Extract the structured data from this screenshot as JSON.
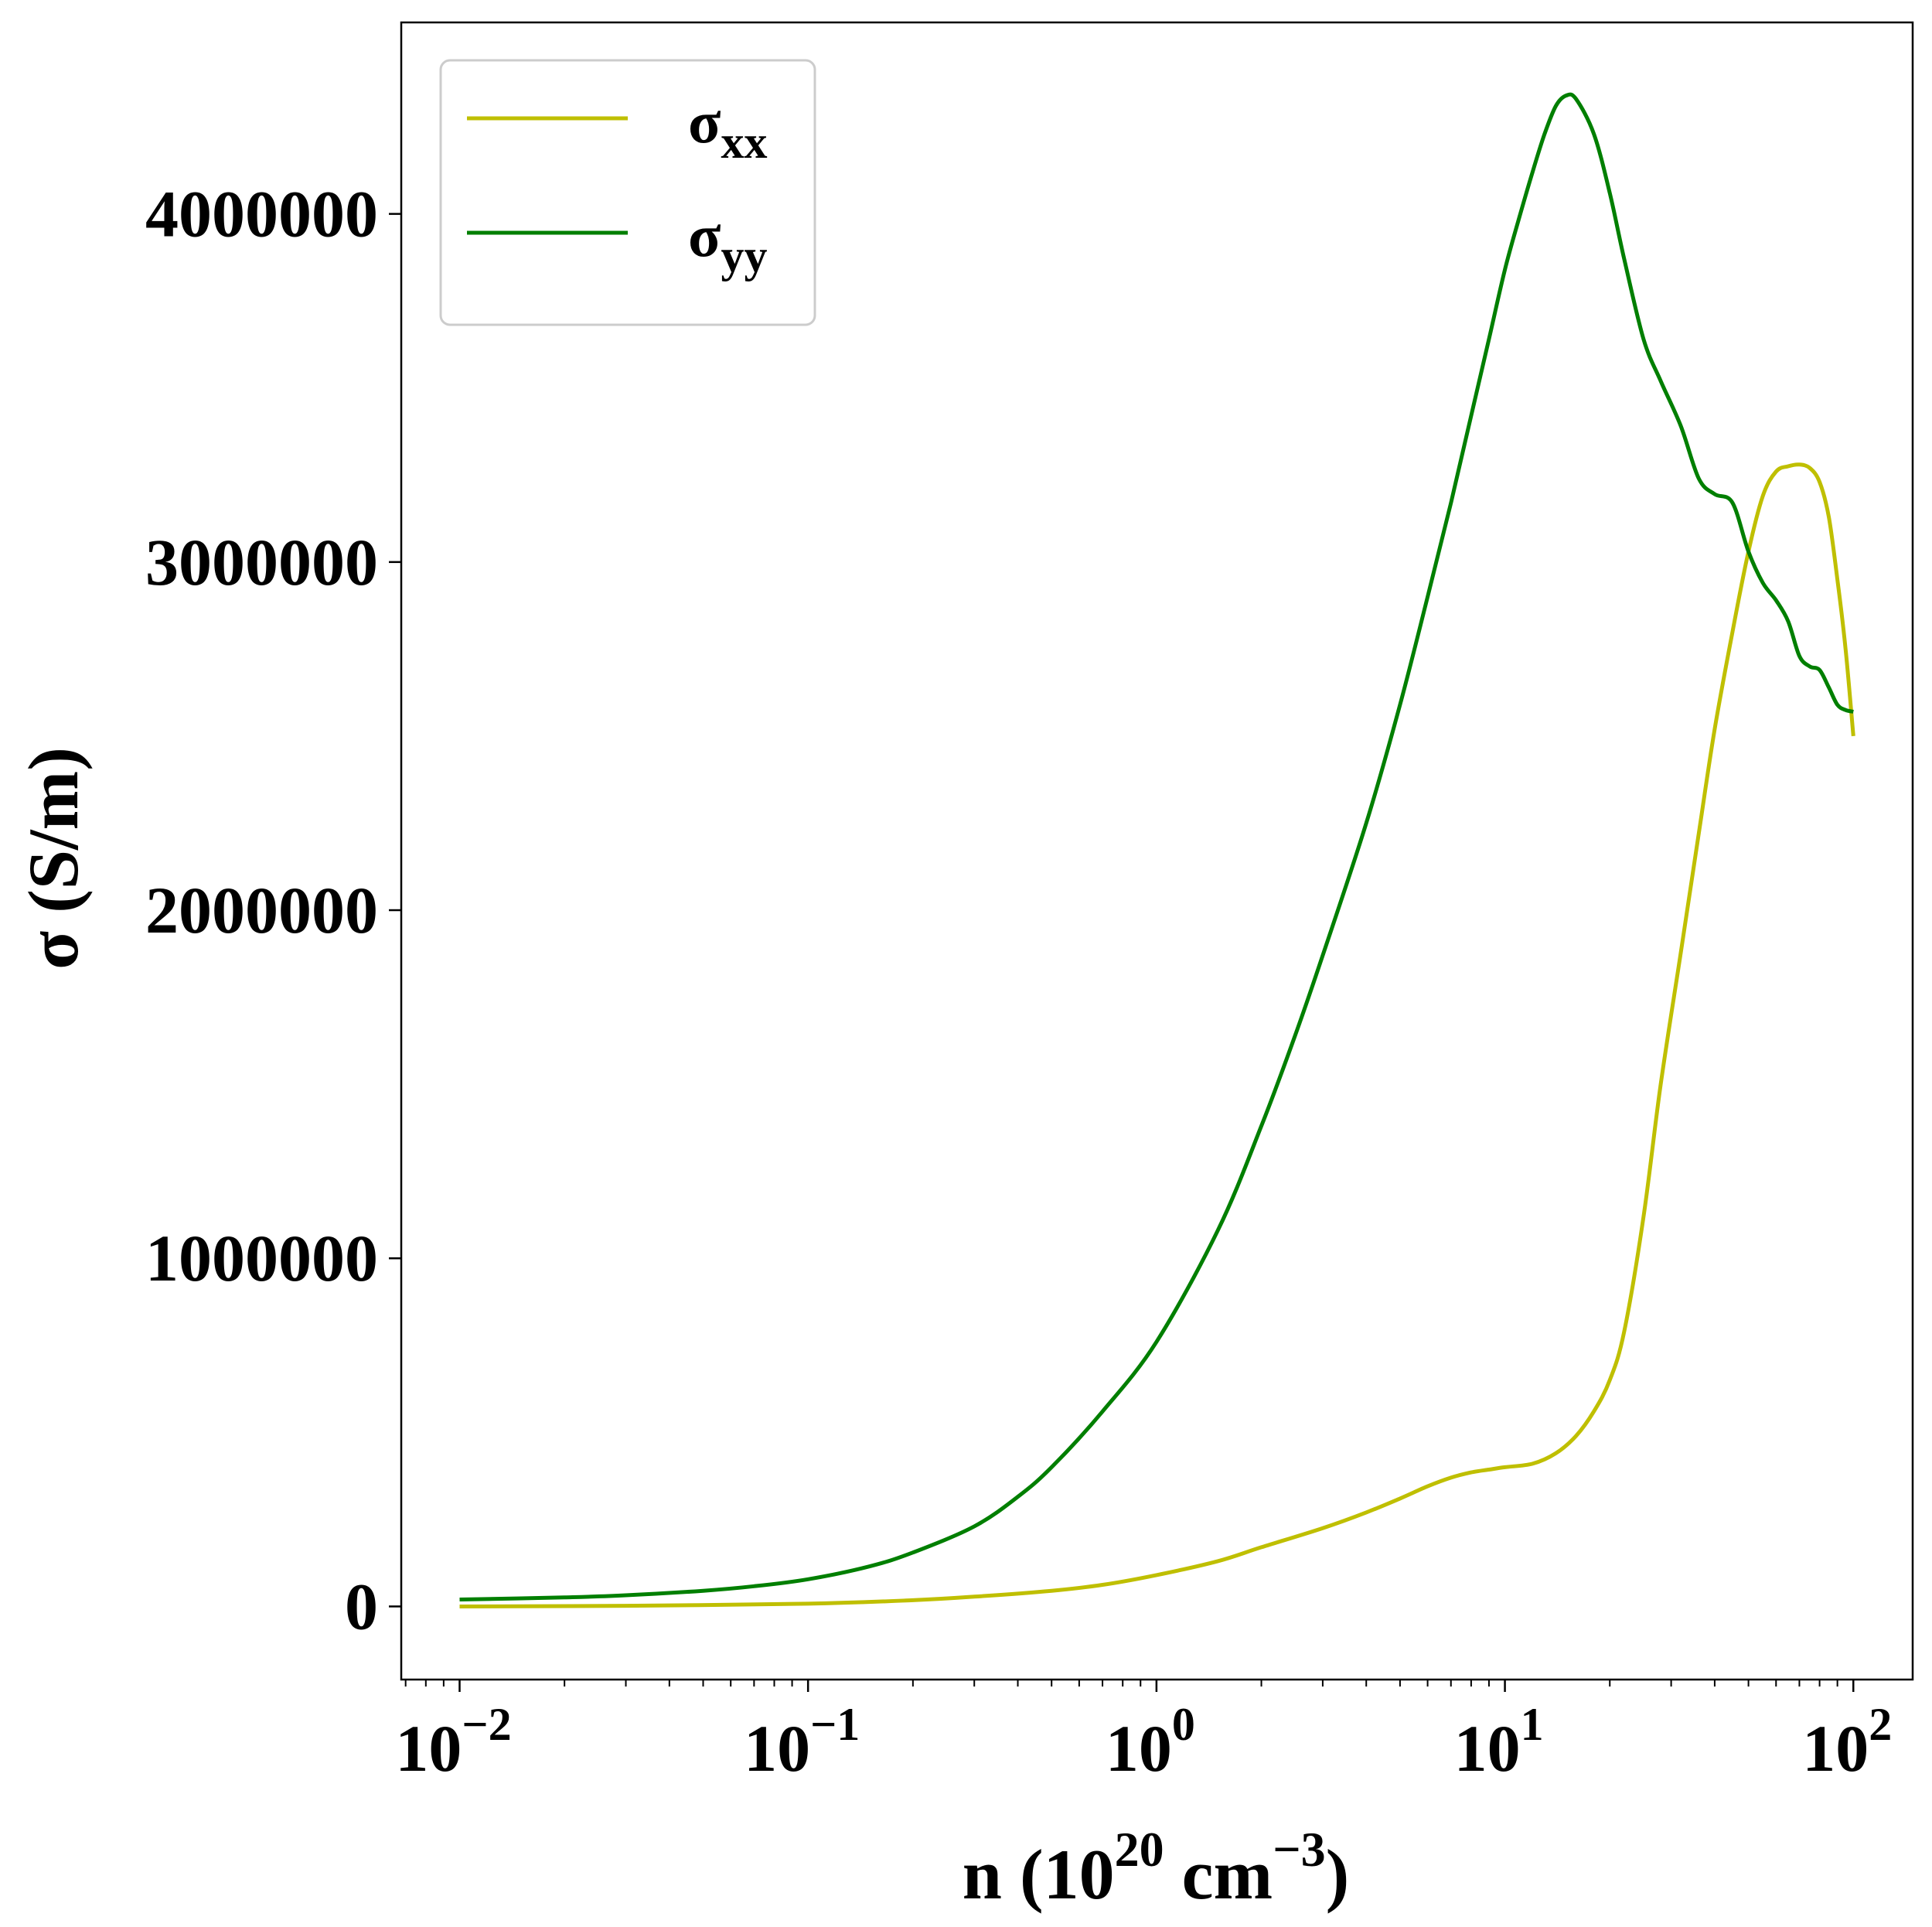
{
  "chart_data": {
    "type": "line",
    "title": "",
    "xlabel": {
      "base": "n (10",
      "sup1": "20",
      "mid": " cm",
      "sup2": "−3",
      "end": ")"
    },
    "ylabel": "σ (S/m)",
    "xscale": "log",
    "xlim": [
      0.0068,
      148
    ],
    "ylim": [
      -210000,
      4550000
    ],
    "x_ticks": [
      {
        "value": 0.01,
        "base": "10",
        "exp": "−2"
      },
      {
        "value": 0.1,
        "base": "10",
        "exp": "−1"
      },
      {
        "value": 1,
        "base": "10",
        "exp": "0"
      },
      {
        "value": 10,
        "base": "10",
        "exp": "1"
      },
      {
        "value": 100,
        "base": "10",
        "exp": "2"
      }
    ],
    "y_ticks": [
      0,
      1000000,
      2000000,
      3000000,
      4000000
    ],
    "y_tick_labels": [
      "0",
      "1000000",
      "2000000",
      "3000000",
      "4000000"
    ],
    "grid": false,
    "legend_position": "top-left",
    "series": [
      {
        "key": "sxx",
        "name": "σ",
        "subscript": "xx",
        "color": "#bfbf00",
        "x": [
          0.01,
          0.03,
          0.1,
          0.2,
          0.3,
          0.5,
          0.7,
          1,
          1.5,
          2,
          3,
          4,
          5,
          6,
          7,
          8,
          9,
          10,
          12,
          14,
          16,
          18,
          20,
          22,
          25,
          28,
          32,
          36,
          40,
          45,
          50,
          55,
          60,
          65,
          70,
          75,
          80,
          85,
          90,
          95,
          100
        ],
        "y": [
          0,
          2000,
          8000,
          18000,
          28000,
          45000,
          62000,
          90000,
          130000,
          170000,
          225000,
          270000,
          310000,
          345000,
          370000,
          385000,
          393000,
          400000,
          410000,
          440000,
          490000,
          560000,
          650000,
          790000,
          1120000,
          1500000,
          1880000,
          2220000,
          2520000,
          2800000,
          3030000,
          3190000,
          3260000,
          3275000,
          3280000,
          3270000,
          3230000,
          3130000,
          2950000,
          2750000,
          2500000
        ]
      },
      {
        "key": "syy",
        "name": "σ",
        "subscript": "yy",
        "color": "#007f00",
        "x": [
          0.01,
          0.02,
          0.03,
          0.05,
          0.07,
          0.1,
          0.15,
          0.2,
          0.3,
          0.4,
          0.5,
          0.7,
          1,
          1.5,
          2,
          2.5,
          3,
          4,
          5,
          6,
          7,
          8,
          9,
          10,
          11,
          12,
          13,
          14,
          15,
          16,
          18,
          20,
          22,
          25,
          28,
          32,
          36,
          40,
          45,
          50,
          55,
          60,
          65,
          70,
          75,
          80,
          85,
          90,
          95,
          100
        ],
        "y": [
          20000,
          26000,
          32000,
          45000,
          58000,
          78000,
          115000,
          155000,
          230000,
          315000,
          400000,
          560000,
          760000,
          1080000,
          1380000,
          1640000,
          1870000,
          2250000,
          2590000,
          2900000,
          3170000,
          3420000,
          3640000,
          3840000,
          3990000,
          4120000,
          4230000,
          4310000,
          4340000,
          4330000,
          4230000,
          4060000,
          3870000,
          3640000,
          3520000,
          3390000,
          3240000,
          3195000,
          3170000,
          3030000,
          2940000,
          2890000,
          2830000,
          2730000,
          2700000,
          2690000,
          2640000,
          2590000,
          2575000,
          2570000
        ]
      }
    ]
  }
}
